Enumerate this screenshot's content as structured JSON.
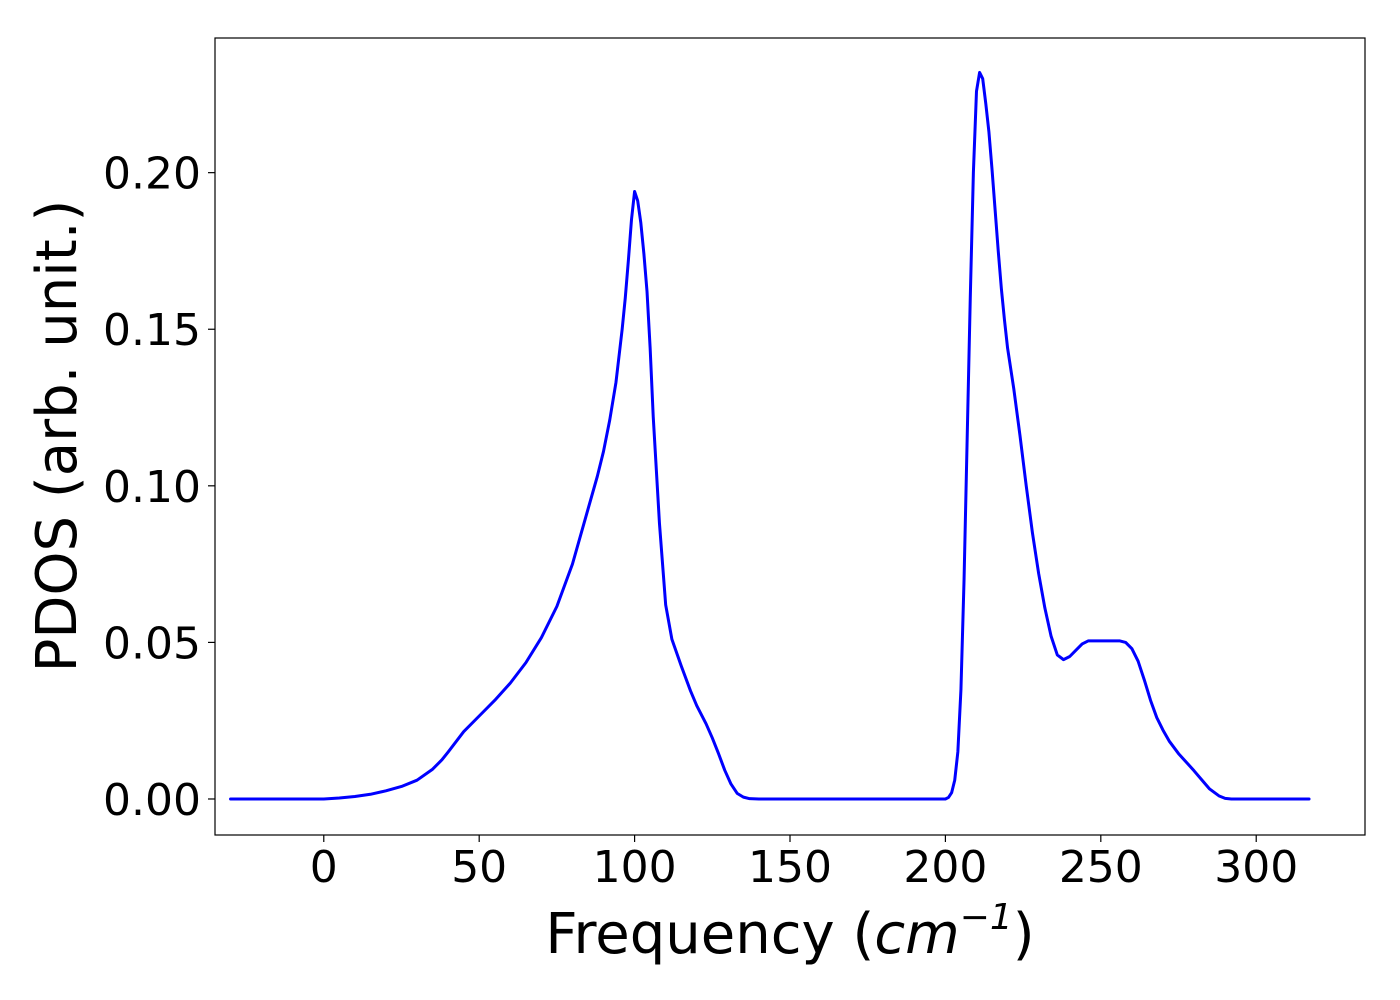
{
  "chart_data": {
    "type": "line",
    "title": "",
    "xlabel": "Frequency",
    "xlabel_unit_base": "cm",
    "xlabel_unit_exponent": "−1",
    "ylabel": "PDOS (arb. unit.)",
    "xlim": [
      -35,
      335
    ],
    "ylim": [
      -0.0115,
      0.243
    ],
    "grid": false,
    "legend": "none",
    "line_color": "#0000ff",
    "xticks": [
      0,
      50,
      100,
      150,
      200,
      250,
      300
    ],
    "xtick_labels": [
      "0",
      "50",
      "100",
      "150",
      "200",
      "250",
      "300"
    ],
    "yticks": [
      0.0,
      0.05,
      0.1,
      0.15,
      0.2
    ],
    "ytick_labels": [
      "0.00",
      "0.05",
      "0.10",
      "0.15",
      "0.20"
    ],
    "series": [
      {
        "x": [
          -30,
          -20,
          -10,
          0,
          5,
          10,
          15,
          20,
          25,
          30,
          35,
          38,
          40,
          45,
          50,
          55,
          60,
          65,
          70,
          75,
          80,
          85,
          88,
          90,
          92,
          94,
          96,
          97,
          98,
          99,
          100,
          101,
          102,
          103,
          104,
          105,
          106,
          108,
          110,
          112,
          115,
          118,
          120,
          123,
          125,
          127,
          129,
          131,
          133,
          135,
          137,
          140,
          150,
          160,
          170,
          180,
          190,
          200,
          201,
          202,
          203,
          204,
          205,
          206,
          207,
          208,
          209,
          210,
          211,
          212,
          213,
          214,
          215,
          216,
          217,
          218,
          219,
          220,
          222,
          224,
          226,
          228,
          230,
          232,
          234,
          236,
          238,
          240,
          242,
          244,
          246,
          248,
          250,
          252,
          254,
          256,
          258,
          260,
          262,
          264,
          266,
          268,
          270,
          272,
          275,
          278,
          280,
          283,
          285,
          288,
          290,
          292,
          295,
          300,
          310,
          317
        ],
        "y": [
          0,
          0,
          0,
          0,
          0.0003,
          0.0008,
          0.0015,
          0.0026,
          0.004,
          0.006,
          0.0095,
          0.0125,
          0.015,
          0.0215,
          0.0265,
          0.0315,
          0.037,
          0.0435,
          0.0515,
          0.0615,
          0.075,
          0.0925,
          0.103,
          0.111,
          0.121,
          0.133,
          0.15,
          0.16,
          0.172,
          0.185,
          0.194,
          0.191,
          0.184,
          0.174,
          0.162,
          0.144,
          0.122,
          0.088,
          0.062,
          0.051,
          0.0425,
          0.0345,
          0.0298,
          0.024,
          0.0195,
          0.0145,
          0.0092,
          0.0048,
          0.0018,
          0.0006,
          0.0001,
          0,
          0,
          0,
          0,
          0,
          0,
          0,
          0.0005,
          0.002,
          0.006,
          0.015,
          0.035,
          0.07,
          0.115,
          0.16,
          0.2,
          0.226,
          0.232,
          0.23,
          0.222,
          0.213,
          0.201,
          0.188,
          0.175,
          0.163,
          0.153,
          0.144,
          0.131,
          0.116,
          0.1,
          0.085,
          0.072,
          0.061,
          0.052,
          0.046,
          0.0445,
          0.0455,
          0.0475,
          0.0495,
          0.0505,
          0.0505,
          0.0505,
          0.0505,
          0.0505,
          0.0505,
          0.05,
          0.048,
          0.044,
          0.038,
          0.0315,
          0.026,
          0.022,
          0.0185,
          0.0145,
          0.0112,
          0.009,
          0.0055,
          0.0032,
          0.001,
          0.0002,
          0,
          0,
          0,
          0,
          0
        ]
      }
    ]
  }
}
